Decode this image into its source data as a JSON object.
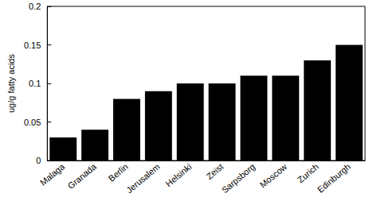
{
  "chart_data": {
    "type": "bar",
    "y_label": "ug/g fatty acids",
    "categories": [
      "Malaga",
      "Granada",
      "Berlin",
      "Jerusalem",
      "Helsinki",
      "Zeist",
      "Sarpsborg",
      "Moscow",
      "Zurich",
      "Edinburgh"
    ],
    "values": [
      0.03,
      0.04,
      0.08,
      0.09,
      0.1,
      0.1,
      0.11,
      0.11,
      0.13,
      0.15
    ],
    "color": "#000000",
    "ylim": [
      0,
      0.2
    ],
    "yticks": [
      0,
      0.05,
      0.1,
      0.15,
      0.2
    ],
    "grid": false
  }
}
